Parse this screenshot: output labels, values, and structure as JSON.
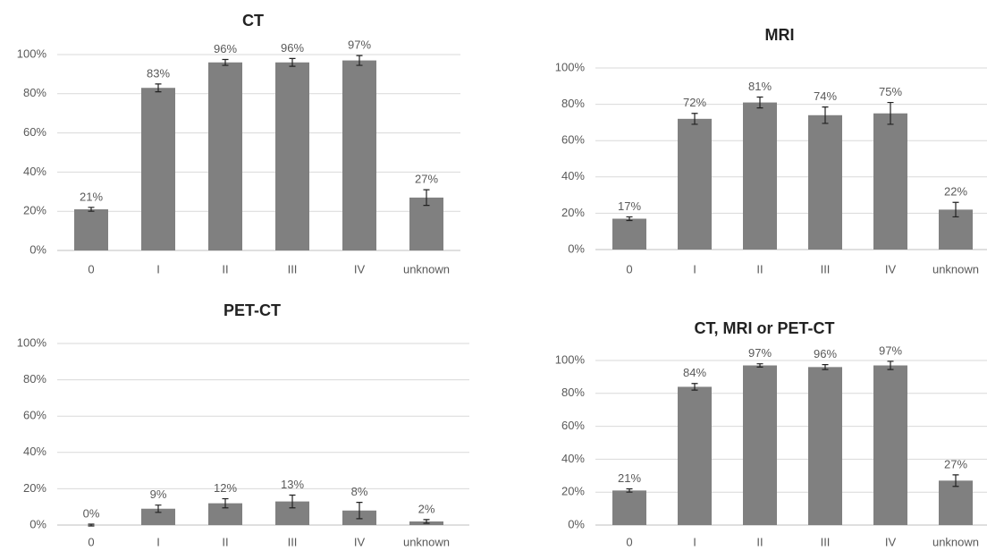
{
  "chart_data": [
    {
      "type": "bar",
      "title": "CT",
      "categories": [
        "0",
        "I",
        "II",
        "III",
        "IV",
        "unknown"
      ],
      "values": [
        21,
        83,
        96,
        96,
        97,
        27
      ],
      "value_labels": [
        "21%",
        "83%",
        "96%",
        "96%",
        "97%",
        "27%"
      ],
      "errors": [
        1,
        2,
        1.5,
        2,
        2.5,
        4
      ],
      "color": "#808080",
      "ylim": [
        0,
        100
      ],
      "yticks": [
        {
          "value": 0,
          "label": "0%"
        },
        {
          "value": 20,
          "label": "20%"
        },
        {
          "value": 40,
          "label": "40%"
        },
        {
          "value": 60,
          "label": "60%"
        },
        {
          "value": 80,
          "label": "80%"
        },
        {
          "value": 100,
          "label": "100%"
        }
      ],
      "grid": true
    },
    {
      "type": "bar",
      "title": "MRI",
      "categories": [
        "0",
        "I",
        "II",
        "III",
        "IV",
        "unknown"
      ],
      "values": [
        17,
        72,
        81,
        74,
        75,
        22
      ],
      "value_labels": [
        "17%",
        "72%",
        "81%",
        "74%",
        "75%",
        "22%"
      ],
      "errors": [
        1,
        3,
        3,
        4.5,
        6,
        4
      ],
      "color": "#808080",
      "ylim": [
        0,
        100
      ],
      "yticks": [
        {
          "value": 0,
          "label": "0%"
        },
        {
          "value": 20,
          "label": "20%"
        },
        {
          "value": 40,
          "label": "40%"
        },
        {
          "value": 60,
          "label": "60%"
        },
        {
          "value": 80,
          "label": "80%"
        },
        {
          "value": 100,
          "label": "100%"
        }
      ],
      "grid": true
    },
    {
      "type": "bar",
      "title": "PET-CT",
      "categories": [
        "0",
        "I",
        "II",
        "III",
        "IV",
        "unknown"
      ],
      "values": [
        0,
        9,
        12,
        13,
        8,
        2
      ],
      "value_labels": [
        "0%",
        "9%",
        "12%",
        "13%",
        "8%",
        "2%"
      ],
      "errors": [
        0.5,
        2,
        2.5,
        3.5,
        4.5,
        1
      ],
      "color": "#808080",
      "ylim": [
        0,
        100
      ],
      "yticks": [
        {
          "value": 0,
          "label": "0%"
        },
        {
          "value": 20,
          "label": "20%"
        },
        {
          "value": 40,
          "label": "40%"
        },
        {
          "value": 60,
          "label": "60%"
        },
        {
          "value": 80,
          "label": "80%"
        },
        {
          "value": 100,
          "label": "100%"
        }
      ],
      "grid": true
    },
    {
      "type": "bar",
      "title": "CT, MRI or PET-CT",
      "categories": [
        "0",
        "I",
        "II",
        "III",
        "IV",
        "unknown"
      ],
      "values": [
        21,
        84,
        97,
        96,
        97,
        27
      ],
      "value_labels": [
        "21%",
        "84%",
        "97%",
        "96%",
        "97%",
        "27%"
      ],
      "errors": [
        1,
        2,
        1,
        1.5,
        2.5,
        3.5
      ],
      "color": "#808080",
      "ylim": [
        0,
        100
      ],
      "yticks": [
        {
          "value": 0,
          "label": "0%"
        },
        {
          "value": 20,
          "label": "20%"
        },
        {
          "value": 40,
          "label": "40%"
        },
        {
          "value": 60,
          "label": "60%"
        },
        {
          "value": 80,
          "label": "80%"
        },
        {
          "value": 100,
          "label": "100%"
        }
      ],
      "grid": true
    }
  ]
}
